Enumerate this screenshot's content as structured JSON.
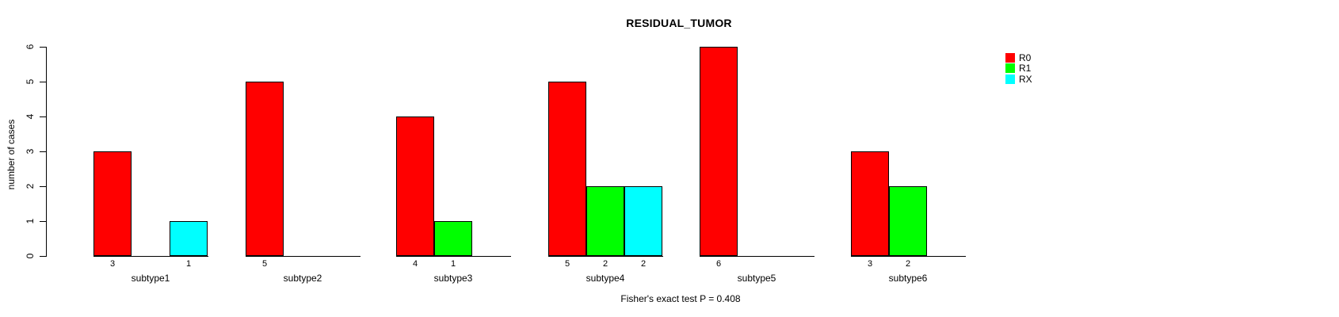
{
  "title": "RESIDUAL_TUMOR",
  "footer": "Fisher's exact test P = 0.408",
  "y_axis": {
    "label": "number of cases",
    "ticks": [
      "0",
      "1",
      "2",
      "3",
      "4",
      "5",
      "6"
    ]
  },
  "legend": {
    "entries": [
      {
        "label": "R0",
        "color": "#FF0000"
      },
      {
        "label": "R1",
        "color": "#00FF00"
      },
      {
        "label": "RX",
        "color": "#00FFFF"
      }
    ]
  },
  "colors": {
    "background": "#FFFFFF",
    "axis": "#000000",
    "r0": "#FF0000",
    "r1": "#00FF00",
    "rx": "#00FFFF"
  },
  "chart_data": {
    "type": "bar",
    "title": "RESIDUAL_TUMOR",
    "xlabel": "",
    "ylabel": "number of cases",
    "ylim": [
      0,
      6
    ],
    "grid": false,
    "legend_position": "right",
    "categories": [
      "subtype1",
      "subtype2",
      "subtype3",
      "subtype4",
      "subtype5",
      "subtype6"
    ],
    "series": [
      {
        "name": "R0",
        "color": "#FF0000",
        "values": [
          3,
          5,
          4,
          5,
          6,
          3
        ]
      },
      {
        "name": "R1",
        "color": "#00FF00",
        "values": [
          0,
          0,
          1,
          2,
          0,
          2
        ]
      },
      {
        "name": "RX",
        "color": "#00FFFF",
        "values": [
          1,
          0,
          0,
          2,
          0,
          0
        ]
      }
    ],
    "bar_value_labels_shown_for_nonzero_only": true,
    "annotation": "Fisher's exact test P = 0.408"
  }
}
